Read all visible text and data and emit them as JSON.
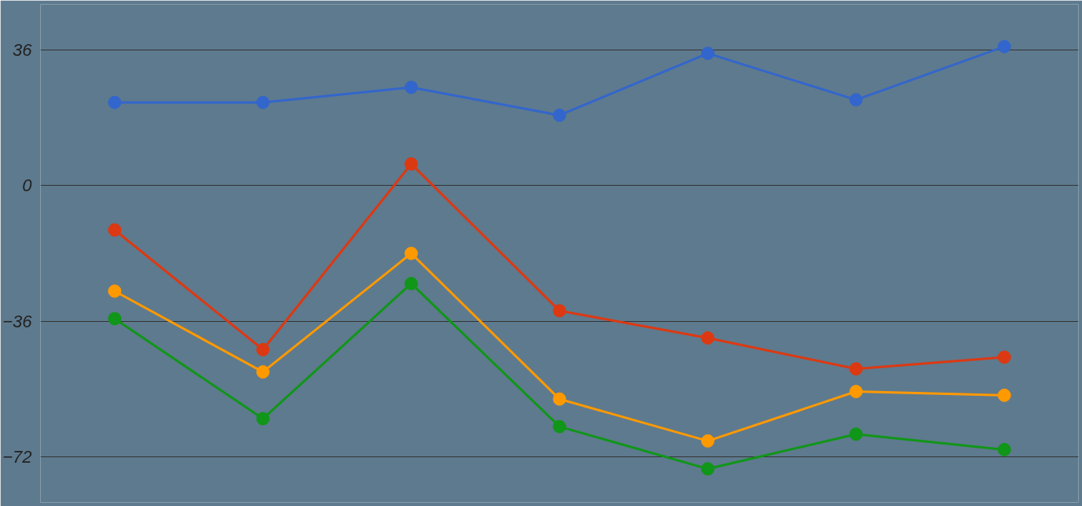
{
  "chart_data": {
    "type": "line",
    "categories": [
      null,
      null,
      null,
      null,
      null,
      null,
      null
    ],
    "series": [
      {
        "color": "#3366cc",
        "values": [
          22,
          22,
          26,
          18.6,
          35,
          22.7,
          36.8
        ]
      },
      {
        "color": "#dc3912",
        "values": [
          -11.8,
          -43.5,
          5.7,
          -33.2,
          -40.4,
          -48.6,
          -45.5
        ]
      },
      {
        "color": "#ff9900",
        "values": [
          -28,
          -49.4,
          -18,
          -56.6,
          -67.7,
          -54.6,
          -55.6
        ]
      },
      {
        "color": "#109618",
        "values": [
          -35.3,
          -61.8,
          -26,
          -63.9,
          -75.1,
          -65.9,
          -70
        ]
      }
    ],
    "ylim": [
      -84,
      48
    ],
    "yticks": [
      36,
      0,
      -36,
      -72
    ],
    "grid": "y",
    "tick_labels": "y",
    "marker": "circle",
    "line_style": "solid"
  }
}
